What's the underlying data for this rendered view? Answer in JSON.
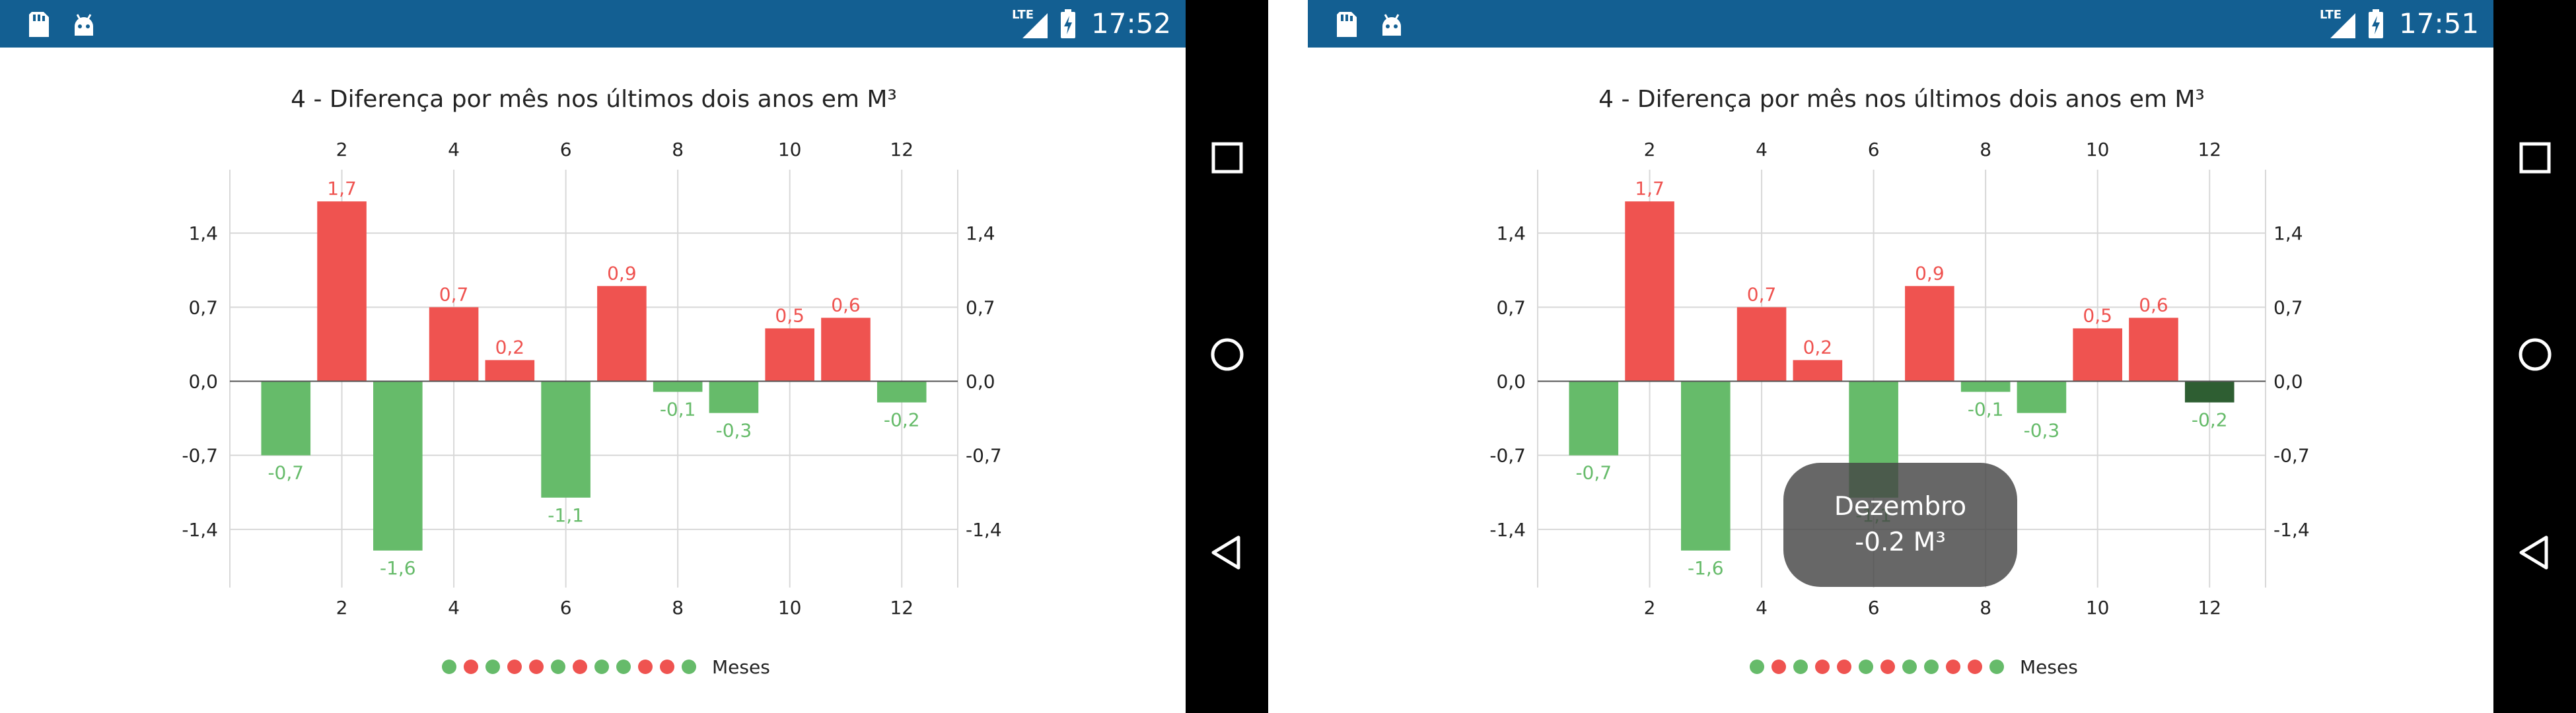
{
  "colors": {
    "status_bar": "#135f92",
    "positive": "#ef5350",
    "negative": "#66bb6a",
    "highlight": "#2e5e32",
    "grid": "#d8d8d8",
    "zero_line": "#555555",
    "tooltip": "#464646"
  },
  "screens": [
    {
      "status": {
        "time": "17:52",
        "network": "LTE",
        "icons": [
          "sd-card-icon",
          "android-icon",
          "signal-icon",
          "battery-charging-icon"
        ]
      },
      "highlight_index": null,
      "tooltip": null
    },
    {
      "status": {
        "time": "17:51",
        "network": "LTE",
        "icons": [
          "sd-card-icon",
          "android-icon",
          "signal-icon",
          "battery-charging-icon"
        ]
      },
      "highlight_index": 11,
      "tooltip": {
        "line1": "Dezembro",
        "line2": "-0.2 M³"
      }
    }
  ],
  "chart_data": {
    "type": "bar",
    "title": "4 - Diferença por mês nos últimos dois anos em M³",
    "x": [
      1,
      2,
      3,
      4,
      5,
      6,
      7,
      8,
      9,
      10,
      11,
      12
    ],
    "values": [
      -0.7,
      1.7,
      -1.6,
      0.7,
      0.2,
      -1.1,
      0.9,
      -0.1,
      -0.3,
      0.5,
      0.6,
      -0.2
    ],
    "value_labels": [
      "-0,7",
      "1,7",
      "-1,6",
      "0,7",
      "0,2",
      "-1,1",
      "0,9",
      "-0,1",
      "-0,3",
      "0,5",
      "0,6",
      "-0,2"
    ],
    "x_ticks": [
      "2",
      "4",
      "6",
      "8",
      "10",
      "12"
    ],
    "y_ticks": [
      "1,4",
      "0,7",
      "0,0",
      "-0,7",
      "-1,4"
    ],
    "y_tick_values": [
      1.4,
      0.7,
      0.0,
      -0.7,
      -1.4
    ],
    "ylim": [
      -1.95,
      2.0
    ],
    "xlim": [
      0,
      13
    ],
    "grid": true,
    "axis_ticks_top_and_bottom": true,
    "axis_ticks_left_and_right": true,
    "legend": {
      "position": "bottom-center",
      "label": "Meses"
    }
  },
  "navigation": {
    "buttons": [
      "recent-apps-button",
      "home-button",
      "back-button"
    ]
  }
}
